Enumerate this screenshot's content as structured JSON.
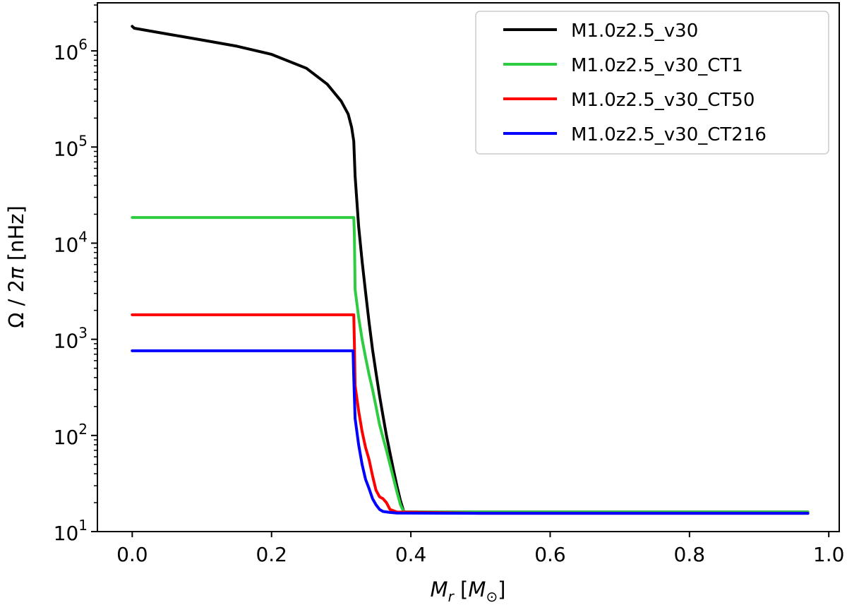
{
  "chart_data": {
    "type": "line",
    "title": "",
    "xlabel": {
      "symbol": "M",
      "subscript": "r",
      "units": "M",
      "units_sub": "⊙"
    },
    "ylabel": {
      "symbol": "Ω",
      "rest": " / 2",
      "pi": "π",
      "units": " [nHz]"
    },
    "xlim": [
      -0.05,
      1.015
    ],
    "ylim_log10": [
      1.0,
      6.5
    ],
    "y_scale": "log",
    "grid": false,
    "legend_position": "top-right",
    "x_ticks": [
      {
        "value": 0.0,
        "label": "0.0"
      },
      {
        "value": 0.2,
        "label": "0.2"
      },
      {
        "value": 0.4,
        "label": "0.4"
      },
      {
        "value": 0.6,
        "label": "0.6"
      },
      {
        "value": 0.8,
        "label": "0.8"
      },
      {
        "value": 1.0,
        "label": "1.0"
      }
    ],
    "y_ticks": [
      {
        "exp": 1,
        "base": "10",
        "sup": "1"
      },
      {
        "exp": 2,
        "base": "10",
        "sup": "2"
      },
      {
        "exp": 3,
        "base": "10",
        "sup": "3"
      },
      {
        "exp": 4,
        "base": "10",
        "sup": "4"
      },
      {
        "exp": 5,
        "base": "10",
        "sup": "5"
      },
      {
        "exp": 6,
        "base": "10",
        "sup": "6"
      }
    ],
    "series": [
      {
        "name": "M1.0z2.5_v30",
        "color": "#000000",
        "points": [
          [
            0.0,
            1800000
          ],
          [
            0.003,
            1720000
          ],
          [
            0.05,
            1500000
          ],
          [
            0.1,
            1300000
          ],
          [
            0.15,
            1120000
          ],
          [
            0.2,
            920000
          ],
          [
            0.25,
            660000
          ],
          [
            0.28,
            450000
          ],
          [
            0.3,
            300000
          ],
          [
            0.31,
            220000
          ],
          [
            0.315,
            160000
          ],
          [
            0.318,
            115000
          ],
          [
            0.32,
            50000
          ],
          [
            0.325,
            15000
          ],
          [
            0.33,
            6500
          ],
          [
            0.335,
            3100
          ],
          [
            0.34,
            1500
          ],
          [
            0.345,
            780
          ],
          [
            0.35,
            450
          ],
          [
            0.355,
            260
          ],
          [
            0.36,
            160
          ],
          [
            0.365,
            100
          ],
          [
            0.37,
            66
          ],
          [
            0.375,
            44
          ],
          [
            0.38,
            30
          ],
          [
            0.385,
            21
          ],
          [
            0.39,
            16
          ],
          [
            0.5,
            16
          ],
          [
            0.7,
            16
          ],
          [
            0.97,
            16
          ]
        ]
      },
      {
        "name": "M1.0z2.5_v30_CT1",
        "color": "#2ecc40",
        "points": [
          [
            0.0,
            18500
          ],
          [
            0.1,
            18500
          ],
          [
            0.2,
            18500
          ],
          [
            0.3,
            18500
          ],
          [
            0.318,
            18500
          ],
          [
            0.319,
            12000
          ],
          [
            0.32,
            3300
          ],
          [
            0.325,
            1700
          ],
          [
            0.33,
            1000
          ],
          [
            0.335,
            650
          ],
          [
            0.34,
            430
          ],
          [
            0.345,
            300
          ],
          [
            0.35,
            200
          ],
          [
            0.355,
            130
          ],
          [
            0.36,
            95
          ],
          [
            0.365,
            70
          ],
          [
            0.37,
            50
          ],
          [
            0.375,
            36
          ],
          [
            0.38,
            26
          ],
          [
            0.385,
            19
          ],
          [
            0.39,
            16
          ],
          [
            0.5,
            16
          ],
          [
            0.7,
            16
          ],
          [
            0.97,
            16
          ]
        ]
      },
      {
        "name": "M1.0z2.5_v30_CT50",
        "color": "#ff0000",
        "points": [
          [
            0.0,
            1800
          ],
          [
            0.1,
            1800
          ],
          [
            0.2,
            1800
          ],
          [
            0.3,
            1800
          ],
          [
            0.318,
            1800
          ],
          [
            0.319,
            900
          ],
          [
            0.32,
            330
          ],
          [
            0.325,
            180
          ],
          [
            0.33,
            110
          ],
          [
            0.335,
            75
          ],
          [
            0.34,
            56
          ],
          [
            0.345,
            38
          ],
          [
            0.35,
            27
          ],
          [
            0.355,
            23
          ],
          [
            0.36,
            22
          ],
          [
            0.365,
            20
          ],
          [
            0.37,
            17
          ],
          [
            0.38,
            16
          ],
          [
            0.5,
            15.5
          ],
          [
            0.7,
            15.5
          ],
          [
            0.97,
            15.5
          ]
        ]
      },
      {
        "name": "M1.0z2.5_v30_CT216",
        "color": "#0000ff",
        "points": [
          [
            0.0,
            760
          ],
          [
            0.1,
            760
          ],
          [
            0.2,
            760
          ],
          [
            0.3,
            760
          ],
          [
            0.317,
            760
          ],
          [
            0.318,
            400
          ],
          [
            0.32,
            150
          ],
          [
            0.325,
            80
          ],
          [
            0.33,
            50
          ],
          [
            0.335,
            35
          ],
          [
            0.34,
            28
          ],
          [
            0.345,
            22
          ],
          [
            0.35,
            19
          ],
          [
            0.355,
            17
          ],
          [
            0.36,
            16.2
          ],
          [
            0.37,
            15.8
          ],
          [
            0.38,
            15.6
          ],
          [
            0.5,
            15.5
          ],
          [
            0.7,
            15.5
          ],
          [
            0.97,
            15.5
          ]
        ]
      }
    ]
  }
}
